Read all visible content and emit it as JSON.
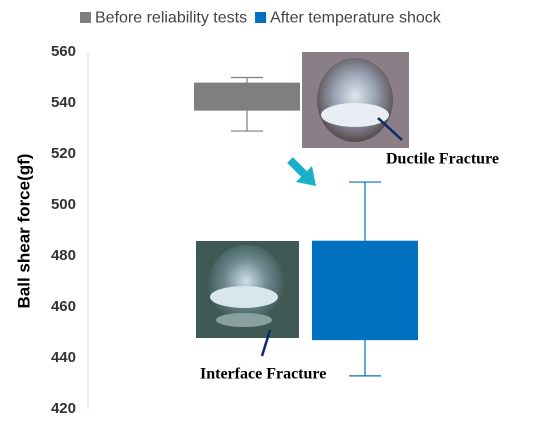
{
  "chart_data": {
    "type": "box",
    "ylabel": "Ball  shear force(gf)",
    "ylim": [
      420,
      560
    ],
    "yticks": [
      420,
      440,
      460,
      480,
      500,
      520,
      540,
      560
    ],
    "series": [
      {
        "name": "Before reliability tests",
        "color": "#7f7f7f",
        "low": 529,
        "q1": 537,
        "q3": 548,
        "high": 550
      },
      {
        "name": "After temperature shock",
        "color": "#0070c0",
        "low": 433,
        "q1": 447,
        "q3": 486,
        "high": 509
      }
    ],
    "annotations": [
      "Ductile  Fracture",
      "Interface Fracture"
    ]
  }
}
